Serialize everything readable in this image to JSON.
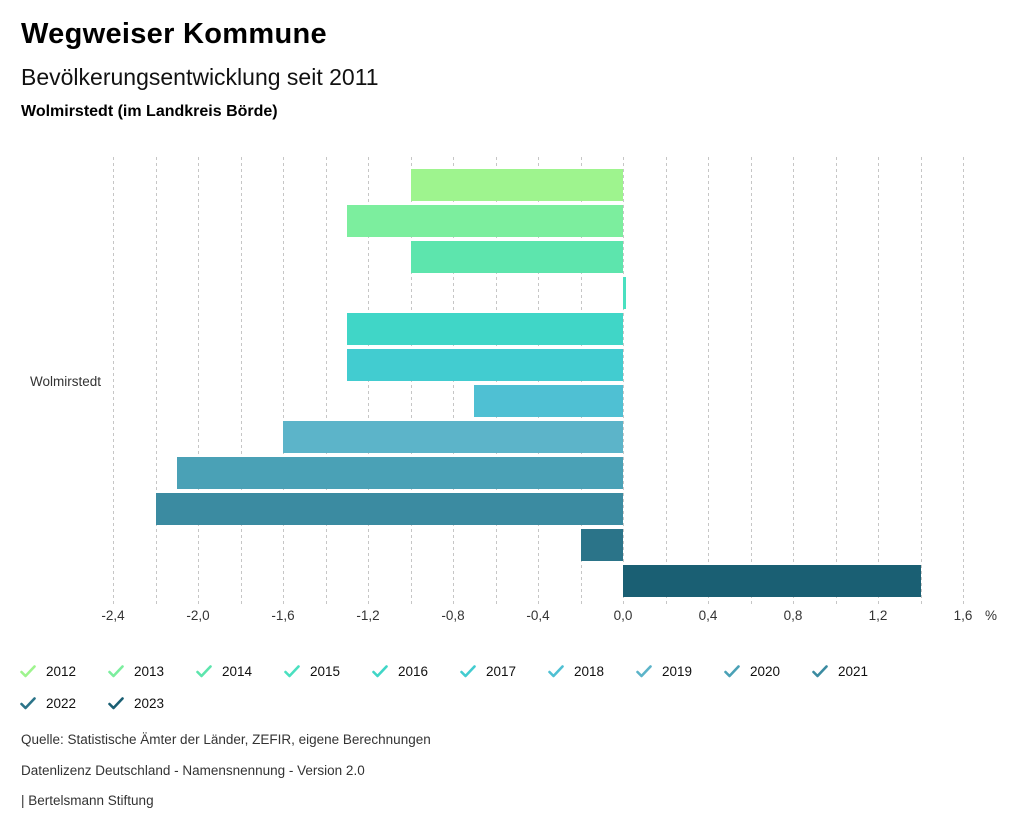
{
  "header": {
    "title": "Wegweiser Kommune",
    "subtitle": "Bevölkerungsentwicklung seit 2011",
    "location": "Wolmirstedt (im Landkreis Börde)"
  },
  "chart_data": {
    "type": "bar",
    "orientation": "horizontal",
    "title": "Bevölkerungsentwicklung seit 2011",
    "category_label": "Wolmirstedt",
    "unit": "%",
    "series": [
      {
        "name": "2012",
        "value": -1.0,
        "color": "#9ef48e"
      },
      {
        "name": "2013",
        "value": -1.3,
        "color": "#7cee9e"
      },
      {
        "name": "2014",
        "value": -1.0,
        "color": "#5de5ad"
      },
      {
        "name": "2015",
        "value": 0.0,
        "color": "#4ae0c0"
      },
      {
        "name": "2016",
        "value": -1.3,
        "color": "#40d6c7"
      },
      {
        "name": "2017",
        "value": -1.3,
        "color": "#42ccd0"
      },
      {
        "name": "2018",
        "value": -0.7,
        "color": "#4fc0d3"
      },
      {
        "name": "2019",
        "value": -1.6,
        "color": "#5cb4c9"
      },
      {
        "name": "2020",
        "value": -2.1,
        "color": "#4aa1b6"
      },
      {
        "name": "2021",
        "value": -2.2,
        "color": "#3b8ba1"
      },
      {
        "name": "2022",
        "value": -0.2,
        "color": "#2b7489"
      },
      {
        "name": "2023",
        "value": 1.4,
        "color": "#1a5f73"
      }
    ],
    "axis": {
      "min": -2.4,
      "max": 1.6,
      "tick_step": 0.4,
      "grid_step": 0.2,
      "tick_labels": [
        "-2,4",
        "-2,0",
        "-1,6",
        "-1,2",
        "-0,8",
        "-0,4",
        "0,0",
        "0,4",
        "0,8",
        "1,2",
        "1,6"
      ],
      "unit_label": "%"
    },
    "grid": "dashed-vertical",
    "legend_position": "bottom"
  },
  "footer": {
    "source": "Quelle: Statistische Ämter der Länder, ZEFIR, eigene Berechnungen",
    "license": "Datenlizenz Deutschland - Namensnennung - Version 2.0",
    "attribution": "| Bertelsmann Stiftung"
  }
}
